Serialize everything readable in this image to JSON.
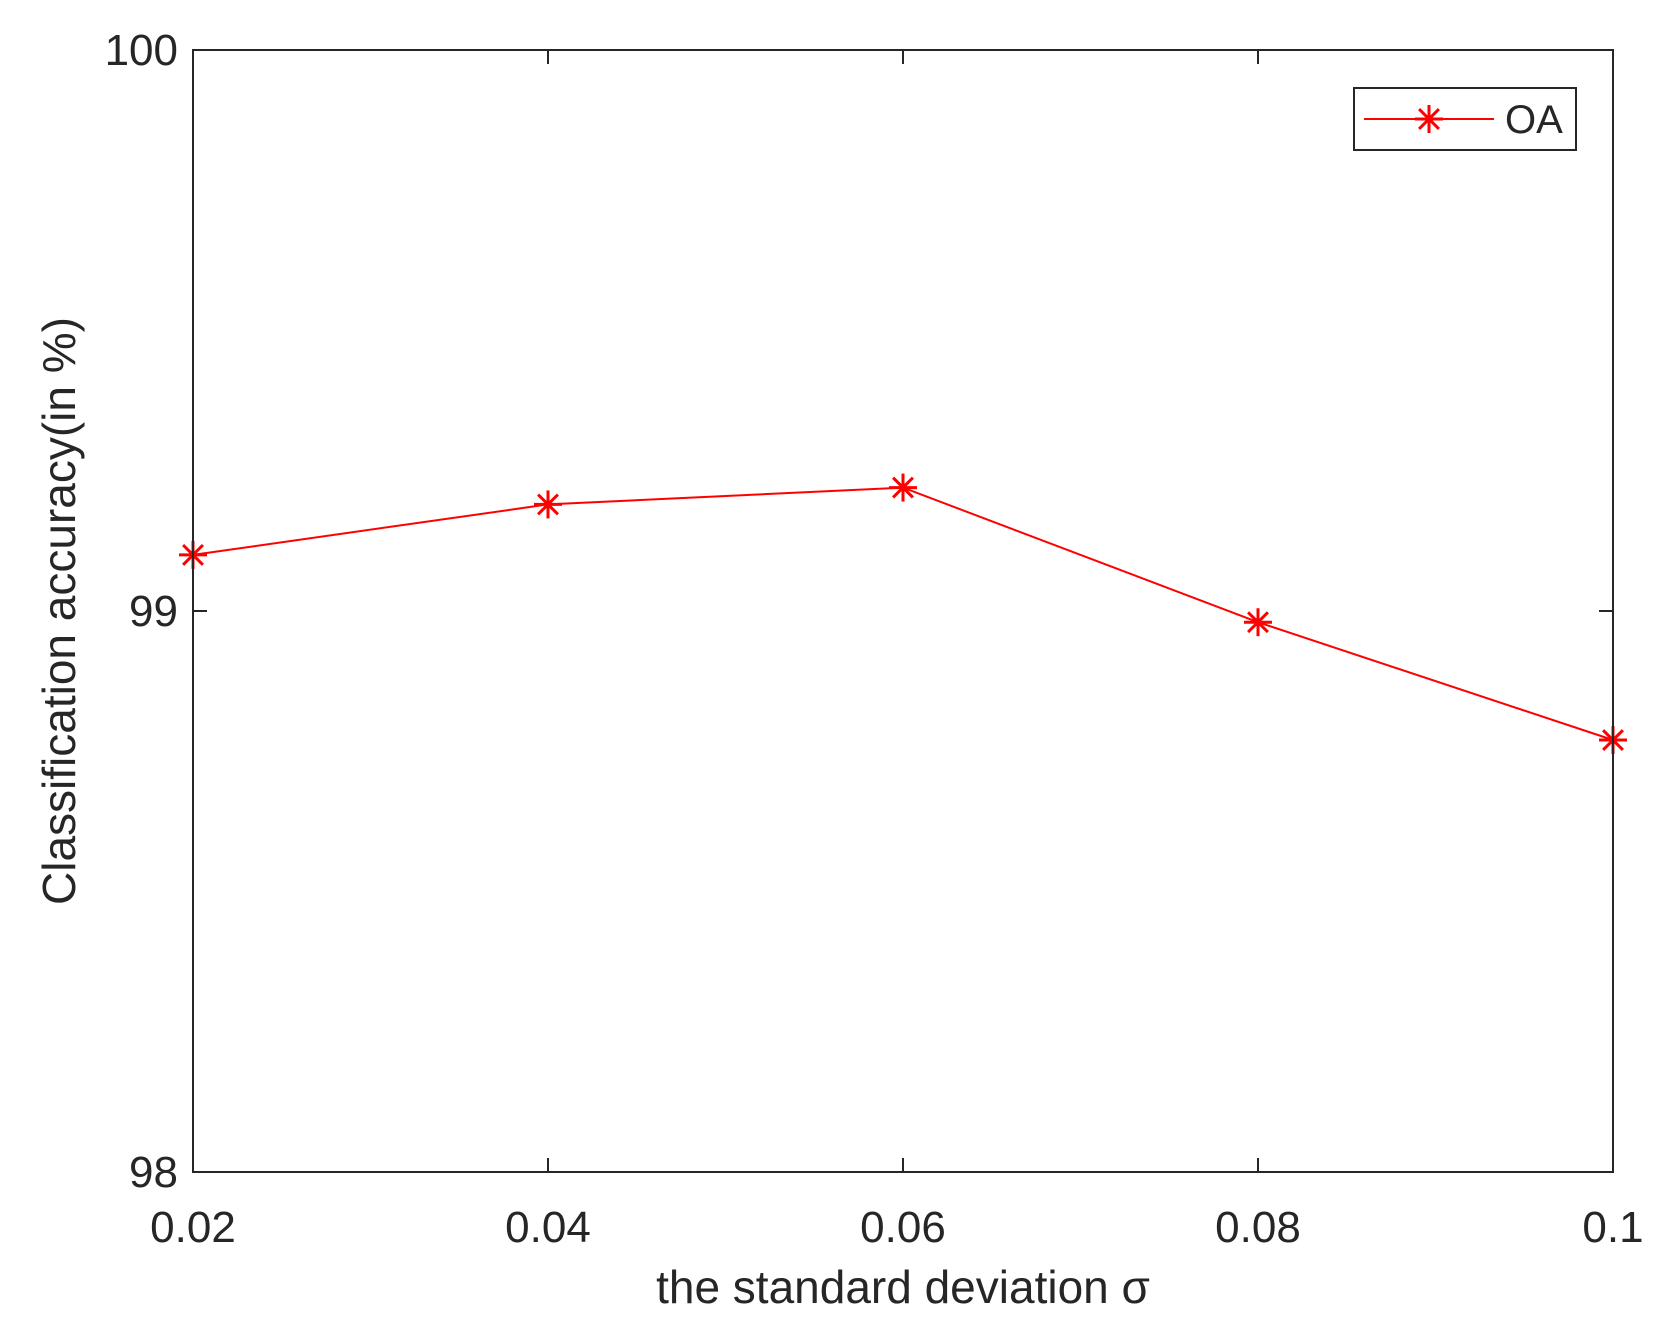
{
  "chart_data": {
    "type": "line",
    "title": "",
    "xlabel": "the standard deviation σ",
    "ylabel": "Classification accuracy(in %)",
    "xlim": [
      0.02,
      0.1
    ],
    "ylim": [
      98,
      100
    ],
    "xticks": [
      0.02,
      0.04,
      0.06,
      0.08,
      0.1
    ],
    "xtick_labels": [
      "0.02",
      "0.04",
      "0.06",
      "0.08",
      "0.1"
    ],
    "yticks": [
      98,
      99,
      100
    ],
    "ytick_labels": [
      "98",
      "99",
      "100"
    ],
    "grid": false,
    "legend_position": "top-right",
    "series": [
      {
        "name": "OA",
        "color": "#ff0000",
        "marker": "asterisk",
        "x": [
          0.02,
          0.04,
          0.06,
          0.08,
          0.1
        ],
        "y": [
          99.1,
          99.19,
          99.22,
          98.98,
          98.77
        ]
      }
    ]
  }
}
